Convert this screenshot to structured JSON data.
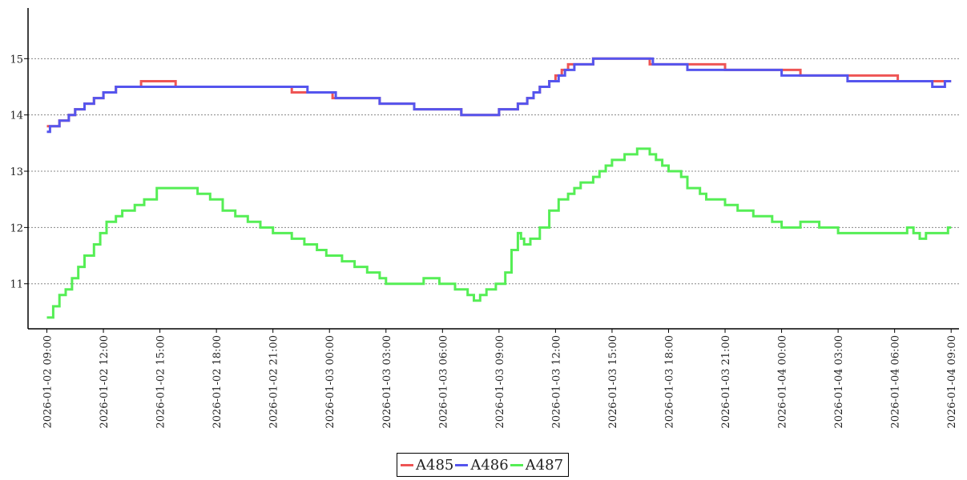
{
  "chart_data": {
    "type": "line",
    "title": "",
    "xlabel": "",
    "ylabel": "",
    "ylim": [
      10.2,
      15.9
    ],
    "y_ticks": [
      11,
      12,
      13,
      14,
      15
    ],
    "x_range": [
      "2026-01-02 08:00",
      "2026-01-04 09:25"
    ],
    "x_ticks": [
      "2026-01-02 09:00",
      "2026-01-02 12:00",
      "2026-01-02 15:00",
      "2026-01-02 18:00",
      "2026-01-02 21:00",
      "2026-01-03 00:00",
      "2026-01-03 03:00",
      "2026-01-03 06:00",
      "2026-01-03 09:00",
      "2026-01-03 12:00",
      "2026-01-03 15:00",
      "2026-01-03 18:00",
      "2026-01-03 21:00",
      "2026-01-04 00:00",
      "2026-01-04 03:00",
      "2026-01-04 06:00",
      "2026-01-04 09:00"
    ],
    "grid": "horizontal-dotted",
    "legend_position": "bottom-center",
    "series": [
      {
        "name": "A485",
        "color": "#ee5555",
        "step": true,
        "points": [
          [
            "2026-01-02 09:00",
            13.8
          ],
          [
            "2026-01-02 09:40",
            13.9
          ],
          [
            "2026-01-02 10:10",
            14.0
          ],
          [
            "2026-01-02 10:30",
            14.1
          ],
          [
            "2026-01-02 11:00",
            14.2
          ],
          [
            "2026-01-02 11:30",
            14.3
          ],
          [
            "2026-01-02 12:00",
            14.4
          ],
          [
            "2026-01-02 12:40",
            14.5
          ],
          [
            "2026-01-02 14:00",
            14.6
          ],
          [
            "2026-01-02 15:50",
            14.5
          ],
          [
            "2026-01-02 22:00",
            14.4
          ],
          [
            "2026-01-03 00:10",
            14.3
          ],
          [
            "2026-01-03 02:40",
            14.2
          ],
          [
            "2026-01-03 04:30",
            14.1
          ],
          [
            "2026-01-03 07:00",
            14.0
          ],
          [
            "2026-01-03 09:00",
            14.1
          ],
          [
            "2026-01-03 10:00",
            14.2
          ],
          [
            "2026-01-03 10:30",
            14.3
          ],
          [
            "2026-01-03 10:50",
            14.4
          ],
          [
            "2026-01-03 11:10",
            14.5
          ],
          [
            "2026-01-03 11:40",
            14.6
          ],
          [
            "2026-01-03 12:00",
            14.7
          ],
          [
            "2026-01-03 12:20",
            14.8
          ],
          [
            "2026-01-03 12:40",
            14.9
          ],
          [
            "2026-01-03 14:00",
            15.0
          ],
          [
            "2026-01-03 17:00",
            14.9
          ],
          [
            "2026-01-03 21:00",
            14.8
          ],
          [
            "2026-01-04 01:00",
            14.7
          ],
          [
            "2026-01-04 06:10",
            14.6
          ],
          [
            "2026-01-04 09:00",
            14.6
          ]
        ]
      },
      {
        "name": "A486",
        "color": "#5555ee",
        "step": true,
        "points": [
          [
            "2026-01-02 09:00",
            13.7
          ],
          [
            "2026-01-02 09:10",
            13.8
          ],
          [
            "2026-01-02 09:40",
            13.9
          ],
          [
            "2026-01-02 10:10",
            14.0
          ],
          [
            "2026-01-02 10:30",
            14.1
          ],
          [
            "2026-01-02 11:00",
            14.2
          ],
          [
            "2026-01-02 11:30",
            14.3
          ],
          [
            "2026-01-02 12:00",
            14.4
          ],
          [
            "2026-01-02 12:40",
            14.5
          ],
          [
            "2026-01-02 22:50",
            14.4
          ],
          [
            "2026-01-03 00:20",
            14.3
          ],
          [
            "2026-01-03 02:40",
            14.2
          ],
          [
            "2026-01-03 04:30",
            14.1
          ],
          [
            "2026-01-03 07:00",
            14.0
          ],
          [
            "2026-01-03 09:00",
            14.1
          ],
          [
            "2026-01-03 10:00",
            14.2
          ],
          [
            "2026-01-03 10:30",
            14.3
          ],
          [
            "2026-01-03 10:50",
            14.4
          ],
          [
            "2026-01-03 11:10",
            14.5
          ],
          [
            "2026-01-03 11:40",
            14.6
          ],
          [
            "2026-01-03 12:10",
            14.7
          ],
          [
            "2026-01-03 12:30",
            14.8
          ],
          [
            "2026-01-03 13:00",
            14.9
          ],
          [
            "2026-01-03 14:00",
            15.0
          ],
          [
            "2026-01-03 17:10",
            14.9
          ],
          [
            "2026-01-03 19:00",
            14.8
          ],
          [
            "2026-01-04 00:00",
            14.7
          ],
          [
            "2026-01-04 03:30",
            14.6
          ],
          [
            "2026-01-04 08:00",
            14.5
          ],
          [
            "2026-01-04 08:40",
            14.6
          ],
          [
            "2026-01-04 09:00",
            14.6
          ]
        ]
      },
      {
        "name": "A487",
        "color": "#55ee55",
        "step": true,
        "points": [
          [
            "2026-01-02 09:00",
            10.4
          ],
          [
            "2026-01-02 09:20",
            10.6
          ],
          [
            "2026-01-02 09:40",
            10.8
          ],
          [
            "2026-01-02 10:00",
            10.9
          ],
          [
            "2026-01-02 10:20",
            11.1
          ],
          [
            "2026-01-02 10:40",
            11.3
          ],
          [
            "2026-01-02 11:00",
            11.5
          ],
          [
            "2026-01-02 11:30",
            11.7
          ],
          [
            "2026-01-02 11:50",
            11.9
          ],
          [
            "2026-01-02 12:10",
            12.1
          ],
          [
            "2026-01-02 12:40",
            12.2
          ],
          [
            "2026-01-02 13:00",
            12.3
          ],
          [
            "2026-01-02 13:40",
            12.4
          ],
          [
            "2026-01-02 14:10",
            12.5
          ],
          [
            "2026-01-02 14:50",
            12.7
          ],
          [
            "2026-01-02 16:30",
            12.7
          ],
          [
            "2026-01-02 17:00",
            12.6
          ],
          [
            "2026-01-02 17:40",
            12.5
          ],
          [
            "2026-01-02 18:20",
            12.3
          ],
          [
            "2026-01-02 19:00",
            12.2
          ],
          [
            "2026-01-02 19:40",
            12.1
          ],
          [
            "2026-01-02 20:20",
            12.0
          ],
          [
            "2026-01-02 21:00",
            11.9
          ],
          [
            "2026-01-02 22:00",
            11.8
          ],
          [
            "2026-01-02 22:40",
            11.7
          ],
          [
            "2026-01-02 23:20",
            11.6
          ],
          [
            "2026-01-02 23:50",
            11.5
          ],
          [
            "2026-01-03 00:40",
            11.4
          ],
          [
            "2026-01-03 01:20",
            11.3
          ],
          [
            "2026-01-03 02:00",
            11.2
          ],
          [
            "2026-01-03 02:40",
            11.1
          ],
          [
            "2026-01-03 03:00",
            11.0
          ],
          [
            "2026-01-03 05:00",
            11.1
          ],
          [
            "2026-01-03 05:50",
            11.0
          ],
          [
            "2026-01-03 06:40",
            10.9
          ],
          [
            "2026-01-03 07:20",
            10.8
          ],
          [
            "2026-01-03 07:40",
            10.7
          ],
          [
            "2026-01-03 08:00",
            10.8
          ],
          [
            "2026-01-03 08:20",
            10.9
          ],
          [
            "2026-01-03 08:50",
            11.0
          ],
          [
            "2026-01-03 09:20",
            11.2
          ],
          [
            "2026-01-03 09:40",
            11.6
          ],
          [
            "2026-01-03 10:00",
            11.9
          ],
          [
            "2026-01-03 10:10",
            11.8
          ],
          [
            "2026-01-03 10:20",
            11.7
          ],
          [
            "2026-01-03 10:40",
            11.8
          ],
          [
            "2026-01-03 11:10",
            12.0
          ],
          [
            "2026-01-03 11:40",
            12.3
          ],
          [
            "2026-01-03 12:10",
            12.5
          ],
          [
            "2026-01-03 12:40",
            12.6
          ],
          [
            "2026-01-03 13:00",
            12.7
          ],
          [
            "2026-01-03 13:20",
            12.8
          ],
          [
            "2026-01-03 14:00",
            12.9
          ],
          [
            "2026-01-03 14:20",
            13.0
          ],
          [
            "2026-01-03 14:40",
            13.1
          ],
          [
            "2026-01-03 15:00",
            13.2
          ],
          [
            "2026-01-03 15:40",
            13.3
          ],
          [
            "2026-01-03 16:20",
            13.4
          ],
          [
            "2026-01-03 17:00",
            13.3
          ],
          [
            "2026-01-03 17:20",
            13.2
          ],
          [
            "2026-01-03 17:40",
            13.1
          ],
          [
            "2026-01-03 18:00",
            13.0
          ],
          [
            "2026-01-03 18:40",
            12.9
          ],
          [
            "2026-01-03 19:00",
            12.7
          ],
          [
            "2026-01-03 19:40",
            12.6
          ],
          [
            "2026-01-03 20:00",
            12.5
          ],
          [
            "2026-01-03 21:00",
            12.4
          ],
          [
            "2026-01-03 21:40",
            12.3
          ],
          [
            "2026-01-03 22:30",
            12.2
          ],
          [
            "2026-01-03 23:30",
            12.1
          ],
          [
            "2026-01-04 00:00",
            12.0
          ],
          [
            "2026-01-04 01:00",
            12.1
          ],
          [
            "2026-01-04 02:00",
            12.0
          ],
          [
            "2026-01-04 03:00",
            11.9
          ],
          [
            "2026-01-04 06:40",
            12.0
          ],
          [
            "2026-01-04 07:00",
            11.9
          ],
          [
            "2026-01-04 07:20",
            11.8
          ],
          [
            "2026-01-04 07:40",
            11.9
          ],
          [
            "2026-01-04 08:50",
            12.0
          ],
          [
            "2026-01-04 09:00",
            12.0
          ]
        ]
      }
    ]
  }
}
